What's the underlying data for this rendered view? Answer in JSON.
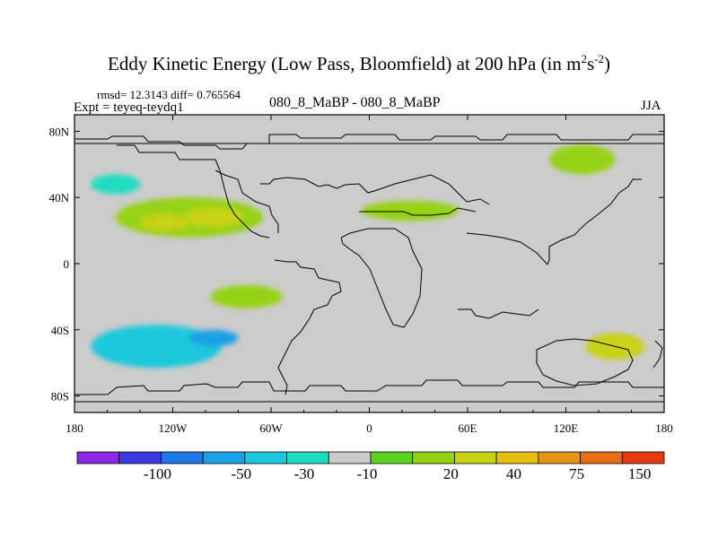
{
  "header": {
    "title": "Eddy Kinetic Energy (Low Pass, Bloomfield) at 200 hPa (in m",
    "title_sup1": "2",
    "title_mid": "s",
    "title_sup2": "-2",
    "title_end": ")",
    "stats": "rmsd= 12.3143 diff= 0.765564",
    "expt": "Expt = teyeq-teydq1",
    "case": "080_8_MaBP - 080_8_MaBP",
    "season": "JJA"
  },
  "chart_data": {
    "type": "heatmap",
    "title": "Eddy Kinetic Energy (Low Pass, Bloomfield) at 200 hPa (in m^2 s^-2)",
    "x_ticks": [
      "180",
      "120W",
      "60W",
      "0",
      "60E",
      "120E",
      "180"
    ],
    "x_values": [
      -180,
      -120,
      -60,
      0,
      60,
      120,
      180
    ],
    "y_ticks": [
      "80N",
      "40N",
      "0",
      "40S",
      "80S"
    ],
    "y_values": [
      80,
      40,
      0,
      -40,
      -80
    ],
    "xlim": [
      -180,
      180
    ],
    "ylim": [
      -90,
      90
    ],
    "colorbar": {
      "colors": [
        "#8a2be2",
        "#3a3ae0",
        "#1e78e6",
        "#1ea0e6",
        "#1ec8dc",
        "#20dcc0",
        "#cccccc",
        "#5ad21e",
        "#96d214",
        "#c8d214",
        "#e6be14",
        "#e69614",
        "#e66e14",
        "#e63c14"
      ],
      "labels": [
        "-100",
        "-50",
        "-30",
        "-10",
        "20",
        "40",
        "75",
        "150"
      ]
    },
    "anomalies": [
      {
        "lon": -110,
        "lat": 28,
        "rx": 45,
        "ry": 12,
        "level": 8
      },
      {
        "lon": -95,
        "lat": 28,
        "rx": 18,
        "ry": 6,
        "level": 9
      },
      {
        "lon": -125,
        "lat": 25,
        "rx": 15,
        "ry": 5,
        "level": 9
      },
      {
        "lon": 25,
        "lat": 32,
        "rx": 30,
        "ry": 6,
        "level": 8
      },
      {
        "lon": 130,
        "lat": 63,
        "rx": 20,
        "ry": 9,
        "level": 8
      },
      {
        "lon": -155,
        "lat": 48,
        "rx": 15,
        "ry": 6,
        "level": 5
      },
      {
        "lon": -130,
        "lat": -50,
        "rx": 40,
        "ry": 13,
        "level": 4
      },
      {
        "lon": -95,
        "lat": -45,
        "rx": 15,
        "ry": 5,
        "level": 3
      },
      {
        "lon": -75,
        "lat": -20,
        "rx": 22,
        "ry": 7,
        "level": 8
      },
      {
        "lon": 150,
        "lat": -50,
        "rx": 18,
        "ry": 8,
        "level": 9
      }
    ]
  },
  "colors": {
    "background_field": "#cccccc",
    "coastline": "#000000"
  }
}
